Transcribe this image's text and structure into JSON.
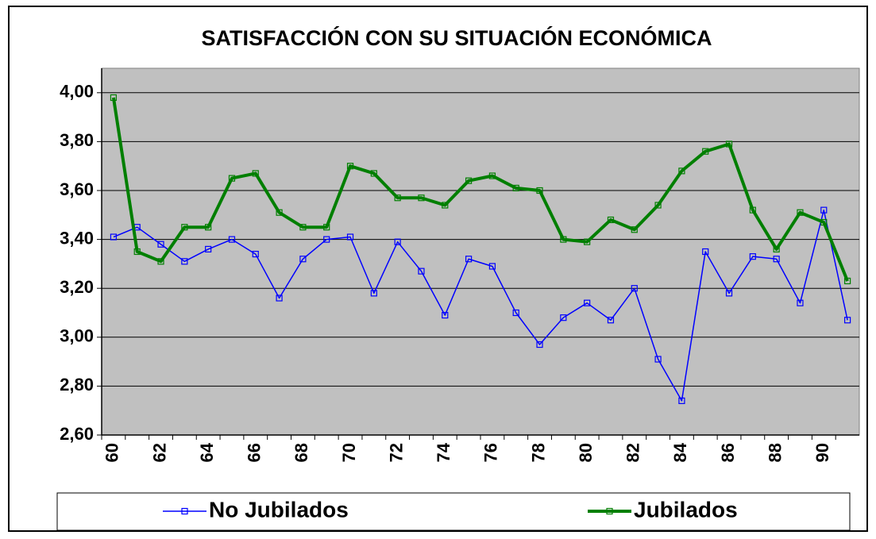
{
  "chart_data": {
    "type": "line",
    "title": "SATISFACCIÓN CON SU SITUACIÓN ECONÓMICA",
    "categories": [
      "60",
      null,
      "62",
      null,
      "64",
      null,
      "66",
      null,
      "68",
      null,
      "70",
      null,
      "72",
      null,
      "74",
      null,
      "76",
      null,
      "78",
      null,
      "80",
      null,
      "82",
      null,
      "84",
      null,
      "86",
      null,
      "88",
      null,
      "90",
      null
    ],
    "series": [
      {
        "name": "No Jubilados",
        "color": "#0000ff",
        "values": [
          3.41,
          3.45,
          3.38,
          3.31,
          3.36,
          3.4,
          3.34,
          3.16,
          3.32,
          3.4,
          3.41,
          3.18,
          3.39,
          3.27,
          3.09,
          3.32,
          3.29,
          3.1,
          2.97,
          3.08,
          3.14,
          3.07,
          3.2,
          2.91,
          2.74,
          3.35,
          3.18,
          3.33,
          3.32,
          3.14,
          3.52,
          3.07
        ]
      },
      {
        "name": "Jubilados",
        "color": "#007f00",
        "values": [
          3.98,
          3.35,
          3.31,
          3.45,
          3.45,
          3.65,
          3.67,
          3.51,
          3.45,
          3.45,
          3.7,
          3.67,
          3.57,
          3.57,
          3.54,
          3.64,
          3.66,
          3.61,
          3.6,
          3.4,
          3.39,
          3.48,
          3.44,
          3.54,
          3.68,
          3.76,
          3.79,
          3.52,
          3.36,
          3.51,
          3.47,
          3.23
        ]
      }
    ],
    "ylim": [
      2.6,
      4.1
    ],
    "yticks": [
      {
        "value": 2.6,
        "label": "2,60"
      },
      {
        "value": 2.8,
        "label": "2,80"
      },
      {
        "value": 3.0,
        "label": "3,00"
      },
      {
        "value": 3.2,
        "label": "3,20"
      },
      {
        "value": 3.4,
        "label": "3,40"
      },
      {
        "value": 3.6,
        "label": "3,60"
      },
      {
        "value": 3.8,
        "label": "3,80"
      },
      {
        "value": 4.0,
        "label": "4,00"
      }
    ],
    "grid": true,
    "plot_background": "#c0c0c0",
    "legend": "bottom"
  }
}
